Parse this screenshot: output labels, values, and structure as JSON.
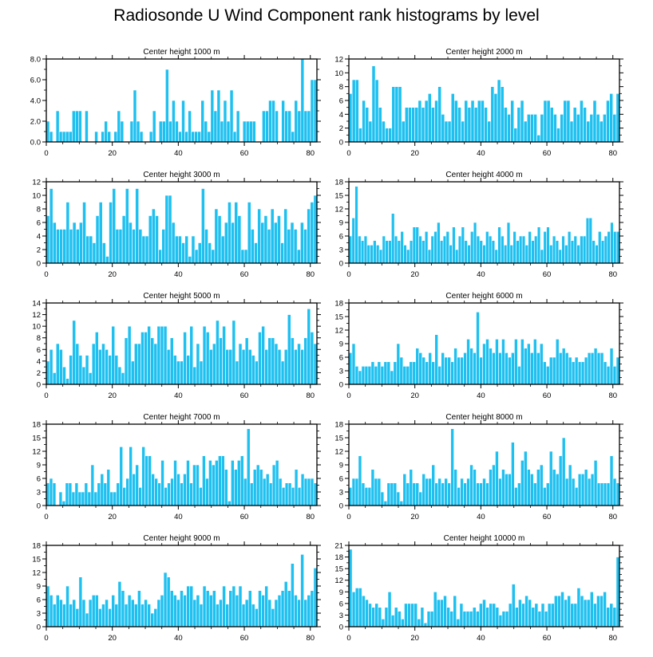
{
  "figure": {
    "title": "Radiosonde U Wind Component rank histograms by level"
  },
  "style": {
    "bar_color": "#1EC0F0",
    "bar_edge": "#ffffff",
    "axis_color": "#000000"
  },
  "chart_data": [
    {
      "type": "bar",
      "title": "Center height 1000 m",
      "xlabel": "",
      "ylabel": "",
      "xlim": [
        0,
        82
      ],
      "ylim": [
        0,
        8
      ],
      "yticks": [
        0,
        2,
        4,
        6,
        8
      ],
      "ytick_labels": [
        "0.0",
        "2.0",
        "4.0",
        "6.0",
        "8.0"
      ],
      "xticks": [
        0,
        20,
        40,
        60,
        80
      ],
      "xtick_labels": [
        "0",
        "20",
        "40",
        "60",
        "80"
      ],
      "values": [
        2,
        1,
        0,
        3,
        1,
        1,
        1,
        1,
        3,
        3,
        3,
        0,
        3,
        0,
        0,
        1,
        0,
        1,
        2,
        1,
        0,
        1,
        3,
        2,
        0,
        0,
        2,
        5,
        2,
        1,
        0,
        0,
        1,
        3,
        0,
        2,
        2,
        7,
        2,
        4,
        2,
        1,
        4,
        1,
        3,
        1,
        1,
        1,
        4,
        2,
        1,
        5,
        3,
        5,
        2,
        4,
        2,
        5,
        1,
        3,
        0,
        2,
        2,
        2,
        2,
        0,
        0,
        3,
        3,
        4,
        4,
        3,
        0,
        4,
        3,
        3,
        1,
        4,
        3,
        8,
        3,
        3,
        6,
        6
      ]
    },
    {
      "type": "bar",
      "title": "Center height 2000 m",
      "xlabel": "",
      "ylabel": "",
      "xlim": [
        0,
        82
      ],
      "ylim": [
        0,
        12
      ],
      "yticks": [
        0,
        2,
        4,
        6,
        8,
        10,
        12
      ],
      "ytick_labels": [
        "0",
        "2",
        "4",
        "6",
        "8",
        "10",
        "12"
      ],
      "xticks": [
        0,
        20,
        40,
        60,
        80
      ],
      "xtick_labels": [
        "0",
        "20",
        "40",
        "60",
        "80"
      ],
      "values": [
        7,
        9,
        9,
        2,
        6,
        5,
        3,
        11,
        9,
        5,
        3,
        2,
        2,
        8,
        8,
        8,
        3,
        5,
        5,
        5,
        5,
        6,
        5,
        6,
        7,
        5,
        6,
        8,
        4,
        3,
        3,
        7,
        6,
        5,
        3,
        6,
        5,
        6,
        5,
        6,
        6,
        5,
        3,
        8,
        7,
        9,
        8,
        5,
        4,
        6,
        2,
        5,
        6,
        3,
        4,
        4,
        4,
        1,
        4,
        6,
        6,
        5,
        4,
        2,
        4,
        6,
        6,
        3,
        5,
        4,
        6,
        5,
        3,
        4,
        6,
        4,
        3,
        4,
        6,
        7,
        4,
        7
      ]
    },
    {
      "type": "bar",
      "title": "Center height 3000 m",
      "xlabel": "",
      "ylabel": "",
      "xlim": [
        0,
        82
      ],
      "ylim": [
        0,
        12
      ],
      "yticks": [
        0,
        2,
        4,
        6,
        8,
        10,
        12
      ],
      "ytick_labels": [
        "0",
        "2",
        "4",
        "6",
        "8",
        "10",
        "12"
      ],
      "xticks": [
        0,
        20,
        40,
        60,
        80
      ],
      "xtick_labels": [
        "0",
        "20",
        "40",
        "60",
        "80"
      ],
      "values": [
        7,
        11,
        6,
        5,
        5,
        5,
        9,
        5,
        6,
        5,
        6,
        9,
        4,
        4,
        3,
        7,
        9,
        3,
        1,
        9,
        11,
        5,
        5,
        7,
        11,
        6,
        5,
        11,
        5,
        4,
        4,
        7,
        8,
        7,
        2,
        5,
        10,
        10,
        6,
        4,
        4,
        3,
        4,
        1,
        4,
        2,
        3,
        11,
        5,
        3,
        2,
        8,
        7,
        4,
        6,
        9,
        6,
        9,
        7,
        2,
        2,
        9,
        5,
        3,
        8,
        6,
        7,
        5,
        8,
        6,
        7,
        3,
        8,
        5,
        6,
        5,
        2,
        6,
        5,
        8,
        9,
        10
      ]
    },
    {
      "type": "bar",
      "title": "Center height 4000 m",
      "xlabel": "",
      "ylabel": "",
      "xlim": [
        0,
        82
      ],
      "ylim": [
        0,
        18
      ],
      "yticks": [
        0,
        3,
        6,
        9,
        12,
        15,
        18
      ],
      "ytick_labels": [
        "0",
        "3",
        "6",
        "9",
        "12",
        "15",
        "18"
      ],
      "xticks": [
        0,
        20,
        40,
        60,
        80
      ],
      "xtick_labels": [
        "0",
        "20",
        "40",
        "60",
        "80"
      ],
      "values": [
        6,
        10,
        17,
        6,
        5,
        6,
        4,
        4,
        5,
        4,
        3,
        6,
        5,
        5,
        11,
        6,
        5,
        7,
        4,
        3,
        5,
        8,
        8,
        6,
        5,
        7,
        3,
        6,
        7,
        9,
        5,
        6,
        7,
        4,
        8,
        3,
        6,
        8,
        5,
        4,
        7,
        9,
        6,
        5,
        4,
        7,
        6,
        5,
        3,
        8,
        6,
        4,
        9,
        4,
        7,
        5,
        6,
        6,
        4,
        7,
        5,
        6,
        8,
        3,
        7,
        8,
        4,
        6,
        5,
        3,
        6,
        4,
        7,
        5,
        6,
        4,
        6,
        6,
        10,
        10,
        5,
        4,
        7,
        5,
        6,
        7,
        9,
        7,
        7
      ]
    },
    {
      "type": "bar",
      "title": "Center height 5000 m",
      "xlabel": "",
      "ylabel": "",
      "xlim": [
        0,
        82
      ],
      "ylim": [
        0,
        14
      ],
      "yticks": [
        0,
        2,
        4,
        6,
        8,
        10,
        12,
        14
      ],
      "ytick_labels": [
        "0",
        "2",
        "4",
        "6",
        "8",
        "10",
        "12",
        "14"
      ],
      "xticks": [
        0,
        20,
        40,
        60,
        80
      ],
      "xtick_labels": [
        "0",
        "20",
        "40",
        "60",
        "80"
      ],
      "values": [
        4,
        6,
        2,
        7,
        6,
        3,
        1,
        5,
        11,
        7,
        5,
        3,
        5,
        2,
        7,
        9,
        6,
        7,
        6,
        5,
        10,
        5,
        3,
        2,
        8,
        10,
        4,
        7,
        7,
        9,
        9,
        10,
        8,
        7,
        10,
        10,
        10,
        6,
        8,
        5,
        4,
        4,
        9,
        5,
        10,
        3,
        7,
        4,
        10,
        9,
        6,
        7,
        11,
        8,
        10,
        6,
        6,
        11,
        4,
        7,
        6,
        8,
        6,
        5,
        4,
        9,
        10,
        6,
        8,
        8,
        7,
        6,
        4,
        6,
        12,
        8,
        6,
        7,
        6,
        8,
        13,
        9,
        7
      ]
    },
    {
      "type": "bar",
      "title": "Center height 6000 m",
      "xlabel": "",
      "ylabel": "",
      "xlim": [
        0,
        82
      ],
      "ylim": [
        0,
        18
      ],
      "yticks": [
        0,
        3,
        6,
        9,
        12,
        15,
        18
      ],
      "ytick_labels": [
        "0",
        "3",
        "6",
        "9",
        "12",
        "15",
        "18"
      ],
      "xticks": [
        0,
        20,
        40,
        60,
        80
      ],
      "xtick_labels": [
        "0",
        "20",
        "40",
        "60",
        "80"
      ],
      "values": [
        7,
        9,
        4,
        3,
        4,
        4,
        4,
        5,
        4,
        5,
        4,
        5,
        5,
        3,
        5,
        9,
        6,
        4,
        4,
        5,
        5,
        8,
        7,
        6,
        5,
        7,
        5,
        11,
        4,
        7,
        6,
        6,
        5,
        8,
        6,
        6,
        7,
        10,
        8,
        7,
        16,
        6,
        9,
        10,
        8,
        7,
        10,
        7,
        10,
        7,
        6,
        7,
        10,
        4,
        10,
        8,
        9,
        7,
        10,
        7,
        9,
        5,
        4,
        6,
        6,
        10,
        7,
        8,
        7,
        6,
        5,
        6,
        5,
        5,
        6,
        7,
        7,
        8,
        7,
        7,
        5,
        4,
        8,
        4,
        6
      ]
    },
    {
      "type": "bar",
      "title": "Center height 7000 m",
      "xlabel": "",
      "ylabel": "",
      "xlim": [
        0,
        82
      ],
      "ylim": [
        0,
        18
      ],
      "yticks": [
        0,
        3,
        6,
        9,
        12,
        15,
        18
      ],
      "ytick_labels": [
        "0",
        "3",
        "6",
        "9",
        "12",
        "15",
        "18"
      ],
      "xticks": [
        0,
        20,
        40,
        60,
        80
      ],
      "xtick_labels": [
        "0",
        "20",
        "40",
        "60",
        "80"
      ],
      "values": [
        5,
        6,
        5,
        0,
        3,
        1,
        5,
        5,
        3,
        5,
        3,
        3,
        5,
        3,
        9,
        3,
        5,
        7,
        5,
        8,
        3,
        3,
        5,
        13,
        4,
        6,
        13,
        7,
        9,
        4,
        13,
        11,
        11,
        7,
        6,
        5,
        10,
        4,
        5,
        6,
        10,
        7,
        5,
        7,
        10,
        5,
        9,
        9,
        4,
        11,
        6,
        10,
        9,
        10,
        11,
        11,
        8,
        1,
        10,
        8,
        10,
        11,
        6,
        17,
        5,
        8,
        9,
        8,
        6,
        7,
        5,
        9,
        10,
        6,
        4,
        5,
        5,
        4,
        8,
        4,
        7,
        6,
        6,
        6,
        5
      ]
    },
    {
      "type": "bar",
      "title": "Center height 8000 m",
      "xlabel": "",
      "ylabel": "",
      "xlim": [
        0,
        82
      ],
      "ylim": [
        0,
        18
      ],
      "yticks": [
        0,
        3,
        6,
        9,
        12,
        15,
        18
      ],
      "ytick_labels": [
        "0",
        "3",
        "6",
        "9",
        "12",
        "15",
        "18"
      ],
      "xticks": [
        0,
        20,
        40,
        60,
        80
      ],
      "xtick_labels": [
        "0",
        "20",
        "40",
        "60",
        "80"
      ],
      "values": [
        4,
        6,
        6,
        11,
        5,
        4,
        4,
        8,
        6,
        6,
        3,
        1,
        5,
        5,
        5,
        3,
        1,
        7,
        5,
        8,
        5,
        5,
        3,
        7,
        6,
        6,
        9,
        5,
        6,
        5,
        6,
        5,
        17,
        8,
        4,
        6,
        5,
        6,
        9,
        8,
        5,
        5,
        6,
        5,
        8,
        9,
        12,
        6,
        8,
        7,
        7,
        14,
        4,
        5,
        10,
        12,
        8,
        7,
        5,
        8,
        9,
        4,
        5,
        12,
        8,
        7,
        11,
        15,
        6,
        9,
        6,
        4,
        7,
        7,
        8,
        6,
        7,
        10,
        5,
        5,
        5,
        5,
        11,
        6,
        5
      ]
    },
    {
      "type": "bar",
      "title": "Center height 9000 m",
      "xlabel": "",
      "ylabel": "",
      "xlim": [
        0,
        82
      ],
      "ylim": [
        0,
        18
      ],
      "yticks": [
        0,
        3,
        6,
        9,
        12,
        15,
        18
      ],
      "ytick_labels": [
        "0",
        "3",
        "6",
        "9",
        "12",
        "15",
        "18"
      ],
      "xticks": [
        0,
        20,
        40,
        60,
        80
      ],
      "xtick_labels": [
        "0",
        "20",
        "40",
        "60",
        "80"
      ],
      "values": [
        9,
        7,
        5,
        7,
        6,
        5,
        9,
        5,
        6,
        4,
        11,
        6,
        3,
        6,
        7,
        7,
        4,
        5,
        6,
        4,
        7,
        5,
        10,
        8,
        5,
        7,
        6,
        5,
        8,
        5,
        6,
        5,
        3,
        4,
        6,
        7,
        12,
        11,
        8,
        7,
        6,
        8,
        7,
        9,
        9,
        6,
        7,
        5,
        9,
        8,
        7,
        8,
        5,
        6,
        9,
        5,
        8,
        9,
        7,
        9,
        5,
        6,
        8,
        5,
        4,
        8,
        7,
        9,
        6,
        4,
        6,
        7,
        8,
        10,
        8,
        14,
        7,
        6,
        16,
        6,
        7,
        8,
        13
      ]
    },
    {
      "type": "bar",
      "title": "Center height 10000 m",
      "xlabel": "",
      "ylabel": "",
      "xlim": [
        0,
        82
      ],
      "ylim": [
        0,
        21
      ],
      "yticks": [
        0,
        3,
        6,
        9,
        12,
        15,
        18,
        21
      ],
      "ytick_labels": [
        "0",
        "3",
        "6",
        "9",
        "12",
        "15",
        "18",
        "21"
      ],
      "xticks": [
        0,
        20,
        40,
        60,
        80
      ],
      "xtick_labels": [
        "0",
        "20",
        "40",
        "60",
        "80"
      ],
      "values": [
        20,
        9,
        10,
        10,
        8,
        7,
        6,
        5,
        6,
        5,
        2,
        5,
        9,
        3,
        5,
        4,
        2,
        6,
        6,
        6,
        6,
        2,
        5,
        1,
        4,
        4,
        9,
        7,
        7,
        8,
        5,
        4,
        8,
        2,
        6,
        4,
        4,
        4,
        5,
        4,
        6,
        7,
        5,
        6,
        6,
        5,
        3,
        4,
        4,
        6,
        11,
        5,
        7,
        6,
        8,
        7,
        5,
        6,
        4,
        6,
        4,
        6,
        6,
        8,
        8,
        9,
        7,
        8,
        6,
        6,
        10,
        8,
        7,
        7,
        9,
        6,
        8,
        8,
        9,
        5,
        6,
        5,
        18
      ]
    }
  ]
}
